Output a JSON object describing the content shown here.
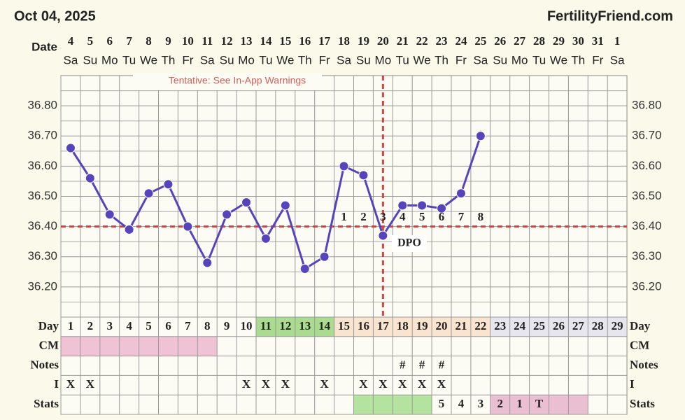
{
  "header": {
    "date": "Oct 04, 2025",
    "brand": "FertilityFriend.com"
  },
  "chart_data": {
    "type": "line",
    "x_label": "Date",
    "categories": [
      "4",
      "5",
      "6",
      "7",
      "8",
      "9",
      "10",
      "11",
      "12",
      "13",
      "14",
      "15",
      "16",
      "17",
      "18",
      "19",
      "20",
      "21",
      "22",
      "23",
      "24",
      "25",
      "26",
      "27",
      "28",
      "29",
      "30",
      "31",
      "1"
    ],
    "weekdays": [
      "Sa",
      "Su",
      "Mo",
      "Tu",
      "We",
      "Th",
      "Fr",
      "Sa",
      "Su",
      "Mo",
      "Tu",
      "We",
      "Th",
      "Fr",
      "Sa",
      "Su",
      "Mo",
      "Tu",
      "We",
      "Th",
      "Fr",
      "Sa",
      "Su",
      "Mo",
      "Tu",
      "We",
      "Th",
      "Fr",
      "Sa"
    ],
    "values": [
      36.66,
      36.56,
      36.44,
      36.39,
      36.51,
      36.54,
      36.4,
      36.28,
      36.44,
      36.48,
      36.36,
      36.47,
      36.26,
      36.3,
      36.6,
      36.57,
      36.37,
      36.47,
      36.47,
      36.46,
      36.51,
      36.7,
      null,
      null,
      null,
      null,
      null,
      null,
      null
    ],
    "color": "#5544bb",
    "ylim": [
      36.1,
      36.9
    ],
    "yticks": [
      {
        "value": 36.2,
        "label": "36.20"
      },
      {
        "value": 36.3,
        "label": "36.30"
      },
      {
        "value": 36.4,
        "label": "36.40"
      },
      {
        "value": 36.5,
        "label": "36.50"
      },
      {
        "value": 36.6,
        "label": "36.60"
      },
      {
        "value": 36.7,
        "label": "36.70"
      },
      {
        "value": 36.8,
        "label": "36.80"
      }
    ],
    "grid": true,
    "coverline": 36.4,
    "ovulation_day": 14,
    "annotation": "Tentative: See In-App Warnings",
    "dpo_title": "DPO",
    "dpo": [
      null,
      null,
      null,
      null,
      null,
      null,
      null,
      null,
      null,
      null,
      null,
      null,
      null,
      null,
      1,
      2,
      3,
      4,
      5,
      6,
      7,
      8,
      null,
      null,
      null,
      null,
      null,
      null,
      null
    ]
  },
  "table": {
    "rows": [
      {
        "label": "Day",
        "cells": [
          1,
          2,
          3,
          4,
          5,
          6,
          7,
          8,
          9,
          10,
          11,
          12,
          13,
          14,
          15,
          16,
          17,
          18,
          19,
          20,
          21,
          22,
          23,
          24,
          25,
          26,
          27,
          28,
          29
        ],
        "fills": [
          null,
          null,
          null,
          null,
          null,
          null,
          null,
          null,
          null,
          null,
          "#a9dc8e",
          "#a9dc8e",
          "#a9dc8e",
          "#a9dc8e",
          "#fbe4cf",
          "#fbe4cf",
          "#fbe4cf",
          "#fbe4cf",
          "#fbe4cf",
          "#fbe4cf",
          "#fbe4cf",
          "#fbe4cf",
          "#e7e6ee",
          "#e7e6ee",
          "#e7e6ee",
          "#e7e6ee",
          "#e7e6ee",
          "#e7e6ee",
          "#e7e6ee"
        ]
      },
      {
        "label": "CM",
        "cells": [
          null,
          null,
          null,
          null,
          null,
          null,
          null,
          null,
          null,
          null,
          null,
          null,
          null,
          null,
          null,
          null,
          null,
          null,
          null,
          null,
          null,
          null,
          null,
          null,
          null,
          null,
          null,
          null,
          null
        ],
        "fills": [
          "#efc2d4",
          "#efc2d4",
          "#efc2d4",
          "#efc2d4",
          "#efc2d4",
          "#efc2d4",
          "#efc2d4",
          "#efc2d4",
          null,
          null,
          null,
          null,
          null,
          null,
          null,
          null,
          null,
          null,
          null,
          null,
          null,
          null,
          null,
          null,
          null,
          null,
          null,
          null,
          null
        ]
      },
      {
        "label": "Notes",
        "cells": [
          null,
          null,
          null,
          null,
          null,
          null,
          null,
          null,
          null,
          null,
          null,
          null,
          null,
          null,
          null,
          null,
          null,
          "#",
          "#",
          "#",
          null,
          null,
          null,
          null,
          null,
          null,
          null,
          null,
          null
        ]
      },
      {
        "label": "I",
        "cells": [
          "X",
          "X",
          null,
          null,
          null,
          null,
          null,
          null,
          null,
          "X",
          "X",
          "X",
          null,
          "X",
          null,
          "X",
          "X",
          "X",
          "X",
          "X",
          null,
          null,
          null,
          null,
          null,
          null,
          null,
          null,
          null
        ]
      },
      {
        "label": "Stats",
        "cells": [
          null,
          null,
          null,
          null,
          null,
          null,
          null,
          null,
          null,
          null,
          null,
          null,
          null,
          null,
          null,
          null,
          null,
          null,
          null,
          5,
          4,
          3,
          2,
          1,
          "T",
          null,
          null,
          null,
          null
        ],
        "fills": [
          null,
          null,
          null,
          null,
          null,
          null,
          null,
          null,
          null,
          null,
          null,
          null,
          null,
          null,
          null,
          "#b3e39e",
          "#b3e39e",
          "#b3e39e",
          "#b3e39e",
          null,
          null,
          null,
          "#ebbfd2",
          "#ebbfd2",
          "#ebbfd2",
          "#ebbfd2",
          "#ebbfd2",
          null,
          null
        ]
      }
    ]
  }
}
